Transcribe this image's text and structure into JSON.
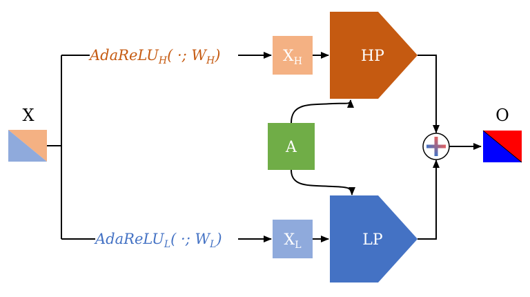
{
  "input": {
    "label": "X"
  },
  "output": {
    "label": "O"
  },
  "branches": {
    "high": {
      "func_name": "AdaReLU",
      "func_sub": "H",
      "args_open": "( ·; ",
      "weight": "W",
      "weight_sub": "H",
      "args_close": ")",
      "node_main": "X",
      "node_sub": "H",
      "filter_label": "HP",
      "color": "#C55A11",
      "node_color": "#F4B183"
    },
    "low": {
      "func_name": "AdaReLU",
      "func_sub": "L",
      "args_open": "( ·; ",
      "weight": "W",
      "weight_sub": "L",
      "args_close": ")",
      "node_main": "X",
      "node_sub": "L",
      "filter_label": "LP",
      "color": "#4472C4",
      "node_color": "#8FAADC"
    }
  },
  "attention": {
    "label": "A",
    "color": "#70AD47"
  },
  "sum_node": {
    "icon": "plus-circle-icon"
  }
}
